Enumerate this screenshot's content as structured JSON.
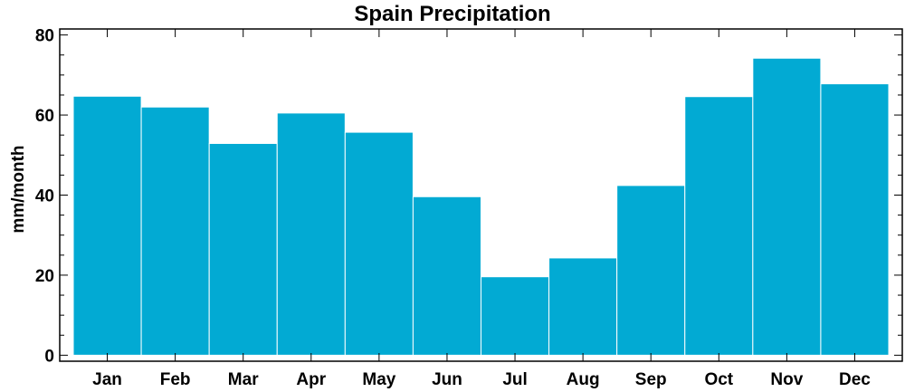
{
  "chart_data": {
    "type": "bar",
    "title": "Spain Precipitation",
    "xlabel": "",
    "ylabel": "mm/month",
    "categories": [
      "Jan",
      "Feb",
      "Mar",
      "Apr",
      "May",
      "Jun",
      "Jul",
      "Aug",
      "Sep",
      "Oct",
      "Nov",
      "Dec"
    ],
    "values": [
      64.7,
      62.0,
      52.9,
      60.5,
      55.7,
      39.6,
      19.6,
      24.3,
      42.4,
      64.6,
      74.2,
      67.8
    ],
    "ylim": [
      -1.5,
      81.5
    ],
    "yticks": [
      0,
      20,
      40,
      60,
      80
    ],
    "yticks_minor_step": 5,
    "bar_color": "#02aad3",
    "bar_edge_color": "#ffffff",
    "grid": false,
    "legend": "none"
  }
}
